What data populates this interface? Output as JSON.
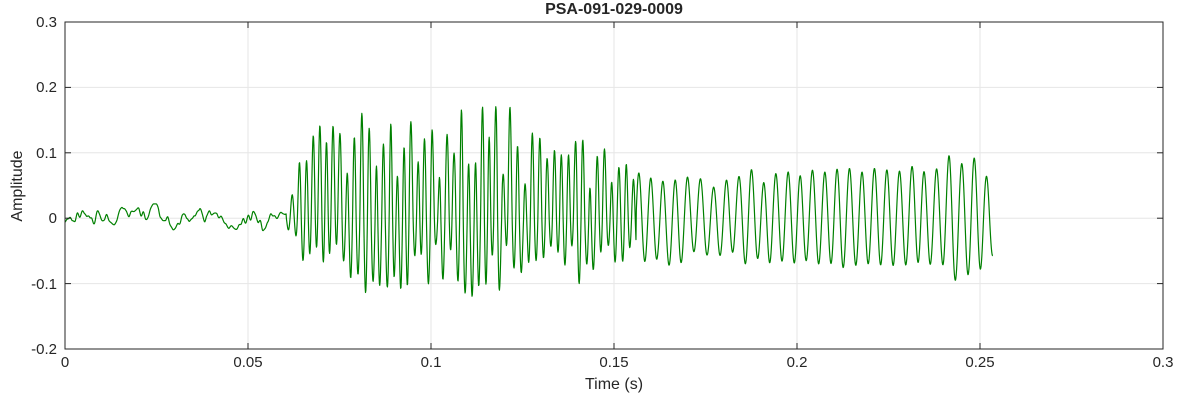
{
  "chart_data": {
    "type": "line",
    "title": "PSA-091-029-0009",
    "xlabel": "Time (s)",
    "ylabel": "Amplitude",
    "xlim": [
      0,
      0.3
    ],
    "ylim": [
      -0.2,
      0.3
    ],
    "grid": true,
    "legend": "none",
    "line_color": "#008000",
    "axis_color": "#262626",
    "grid_color": "#e6e6e6",
    "x_ticks": [
      {
        "value": 0,
        "label": "0"
      },
      {
        "value": 0.05,
        "label": "0.05"
      },
      {
        "value": 0.1,
        "label": "0.1"
      },
      {
        "value": 0.15,
        "label": "0.15"
      },
      {
        "value": 0.2,
        "label": "0.2"
      },
      {
        "value": 0.25,
        "label": "0.25"
      },
      {
        "value": 0.3,
        "label": "0.3"
      }
    ],
    "y_ticks": [
      {
        "value": -0.2,
        "label": "-0.2"
      },
      {
        "value": -0.1,
        "label": "-0.1"
      },
      {
        "value": 0,
        "label": "0"
      },
      {
        "value": 0.1,
        "label": "0.1"
      },
      {
        "value": 0.2,
        "label": "0.2"
      },
      {
        "value": 0.3,
        "label": "0.3"
      }
    ],
    "waveform": {
      "description": "Acoustic/seismic signal: low-amplitude noise 0-0.06 s, strong irregular burst 0.06-0.156 s (peaks +0.21 / -0.16), decaying quasi-sinusoidal coda 0.156-0.2535 s",
      "dt": 0.0001,
      "t_end": 0.2535,
      "noise_end": 0.0605,
      "noise_amp": 0.013,
      "burst": {
        "t0": 0.0605,
        "t1": 0.156,
        "carrier_hz": 510,
        "phase_jitter": 3.0,
        "noise_mix": 0.38,
        "env_pos": [
          [
            0.0605,
            0.02
          ],
          [
            0.064,
            0.09
          ],
          [
            0.068,
            0.13
          ],
          [
            0.072,
            0.15
          ],
          [
            0.076,
            0.12
          ],
          [
            0.08,
            0.19
          ],
          [
            0.086,
            0.19
          ],
          [
            0.09,
            0.12
          ],
          [
            0.094,
            0.15
          ],
          [
            0.099,
            0.16
          ],
          [
            0.104,
            0.14
          ],
          [
            0.108,
            0.16
          ],
          [
            0.113,
            0.17
          ],
          [
            0.117,
            0.18
          ],
          [
            0.121,
            0.18
          ],
          [
            0.126,
            0.15
          ],
          [
            0.131,
            0.16
          ],
          [
            0.136,
            0.13
          ],
          [
            0.141,
            0.15
          ],
          [
            0.146,
            0.11
          ],
          [
            0.151,
            0.1
          ],
          [
            0.156,
            0.08
          ]
        ],
        "env_neg": [
          [
            0.0605,
            0.02
          ],
          [
            0.064,
            0.07
          ],
          [
            0.068,
            0.1
          ],
          [
            0.072,
            0.12
          ],
          [
            0.076,
            0.1
          ],
          [
            0.08,
            0.12
          ],
          [
            0.083,
            0.145
          ],
          [
            0.088,
            0.1
          ],
          [
            0.094,
            0.11
          ],
          [
            0.099,
            0.115
          ],
          [
            0.104,
            0.1
          ],
          [
            0.108,
            0.11
          ],
          [
            0.113,
            0.13
          ],
          [
            0.118,
            0.11
          ],
          [
            0.123,
            0.105
          ],
          [
            0.128,
            0.1
          ],
          [
            0.133,
            0.095
          ],
          [
            0.138,
            0.1
          ],
          [
            0.143,
            0.09
          ],
          [
            0.148,
            0.085
          ],
          [
            0.156,
            0.07
          ]
        ]
      },
      "coda": {
        "t0": 0.156,
        "t1": 0.2535,
        "freq_hz": 295,
        "amp": [
          [
            0.156,
            0.08
          ],
          [
            0.162,
            0.055
          ],
          [
            0.168,
            0.07
          ],
          [
            0.174,
            0.05
          ],
          [
            0.182,
            0.06
          ],
          [
            0.19,
            0.065
          ],
          [
            0.2,
            0.068
          ],
          [
            0.21,
            0.07
          ],
          [
            0.22,
            0.072
          ],
          [
            0.23,
            0.075
          ],
          [
            0.24,
            0.082
          ],
          [
            0.248,
            0.09
          ],
          [
            0.2535,
            0.05
          ]
        ]
      }
    }
  }
}
